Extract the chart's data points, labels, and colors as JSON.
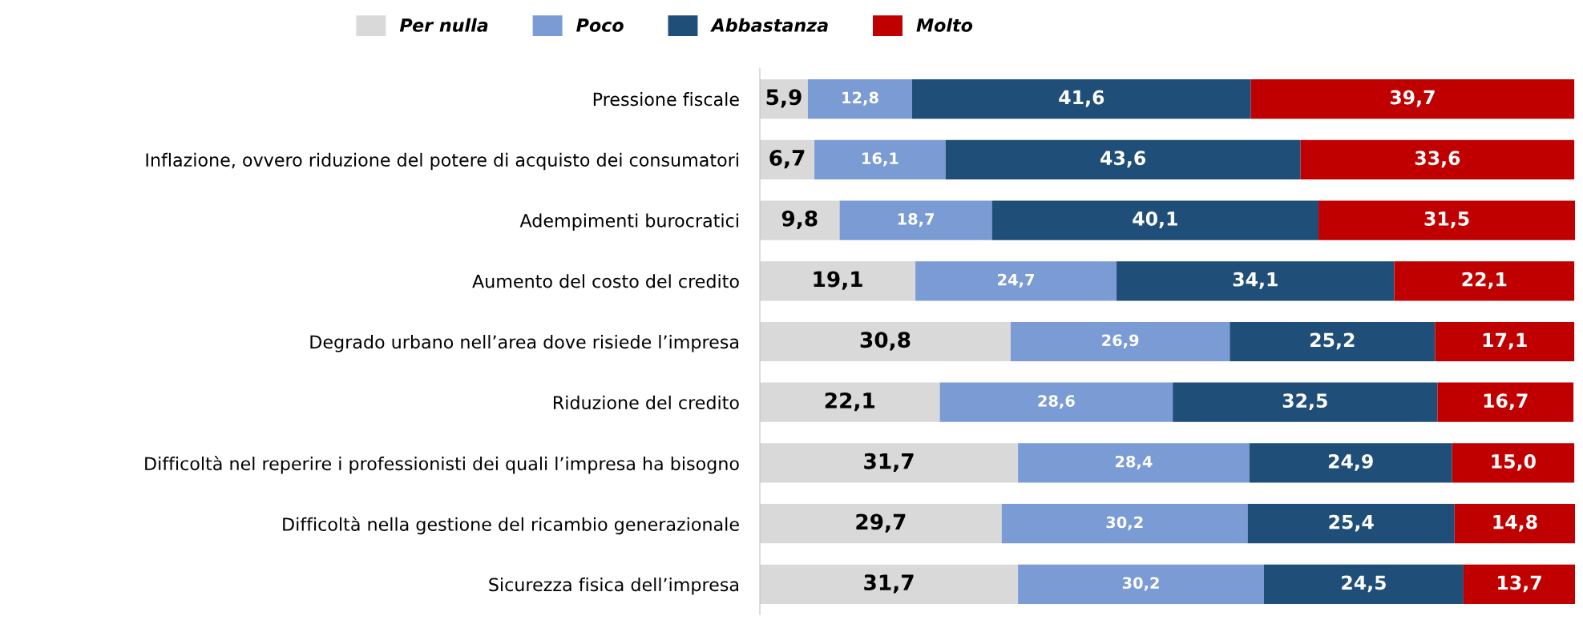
{
  "chart_data": {
    "type": "bar",
    "orientation": "horizontal",
    "stacked": true,
    "legend": "top",
    "tick_labels": "y",
    "grid": false,
    "categories": [
      "Pressione fiscale",
      "Inflazione, ovvero riduzione del potere di acquisto dei consumatori",
      "Adempimenti burocratici",
      "Aumento del costo del credito",
      "Degrado urbano nell’area dove risiede l’impresa",
      "Riduzione del credito",
      "Difficoltà nel reperire i professionisti dei quali l’impresa ha bisogno",
      "Difficoltà nella gestione del ricambio generazionale",
      "Sicurezza fisica dell’impresa"
    ],
    "series": [
      {
        "name": "Per nulla",
        "color": "#d9d9d9",
        "values": [
          5.9,
          6.7,
          9.8,
          19.1,
          30.8,
          22.1,
          31.7,
          29.7,
          31.7
        ],
        "value_labels": [
          "5,9",
          "6,7",
          "9,8",
          "19,1",
          "30,8",
          "22,1",
          "31,7",
          "29,7",
          "31,7"
        ]
      },
      {
        "name": "Poco",
        "color": "#7b9bd5",
        "values": [
          12.8,
          16.1,
          18.7,
          24.7,
          26.9,
          28.6,
          28.4,
          30.2,
          30.2
        ],
        "value_labels": [
          "12,8",
          "16,1",
          "18,7",
          "24,7",
          "26,9",
          "28,6",
          "28,4",
          "30,2",
          "30,2"
        ]
      },
      {
        "name": "Abbastanza",
        "color": "#1f4e79",
        "values": [
          41.6,
          43.6,
          40.1,
          34.1,
          25.2,
          32.5,
          24.9,
          25.4,
          24.5
        ],
        "value_labels": [
          "41,6",
          "43,6",
          "40,1",
          "34,1",
          "25,2",
          "32,5",
          "24,9",
          "25,4",
          "24,5"
        ]
      },
      {
        "name": "Molto",
        "color": "#c00000",
        "values": [
          39.7,
          33.6,
          31.5,
          22.1,
          17.1,
          16.7,
          15.0,
          14.8,
          13.7
        ],
        "value_labels": [
          "39,7",
          "33,6",
          "31,5",
          "22,1",
          "17,1",
          "16,7",
          "15,0",
          "14,8",
          "13,7"
        ]
      }
    ]
  }
}
